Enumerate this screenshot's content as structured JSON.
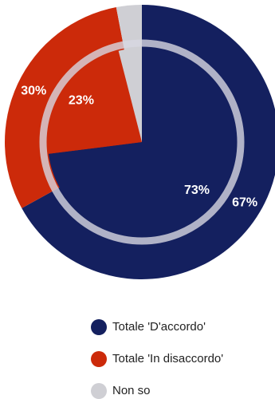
{
  "chart_data": {
    "type": "pie",
    "categories": [
      "Totale 'D'accordo'",
      "Totale 'In disaccordo'",
      "Non so"
    ],
    "colors": [
      "#14205f",
      "#cc2a0a",
      "#cfcfd4"
    ],
    "rings": [
      {
        "values": [
          67,
          30,
          3
        ],
        "value_labels": [
          "67%",
          "30%",
          null
        ]
      },
      {
        "values": [
          73,
          23,
          4
        ],
        "value_labels": [
          "73%",
          "23%",
          null
        ]
      }
    ],
    "legend": "bottom"
  }
}
